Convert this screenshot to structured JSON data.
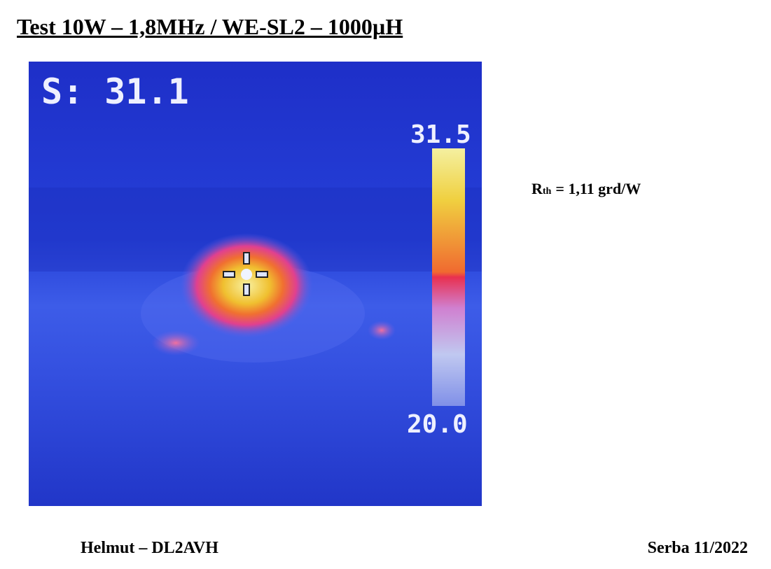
{
  "header": {
    "title": "Test 10W – 1,8MHz / WE-SL2 – 1000µH"
  },
  "image": {
    "spot_label": "S: 31.1",
    "scale_max": "31.5",
    "scale_min": "20.0"
  },
  "note": {
    "symbol": "R",
    "subscript": "th",
    "text": "= 1,11 grd/W"
  },
  "footer": {
    "left": "Helmut – DL2AVH",
    "right": "Serba 11/2022"
  }
}
